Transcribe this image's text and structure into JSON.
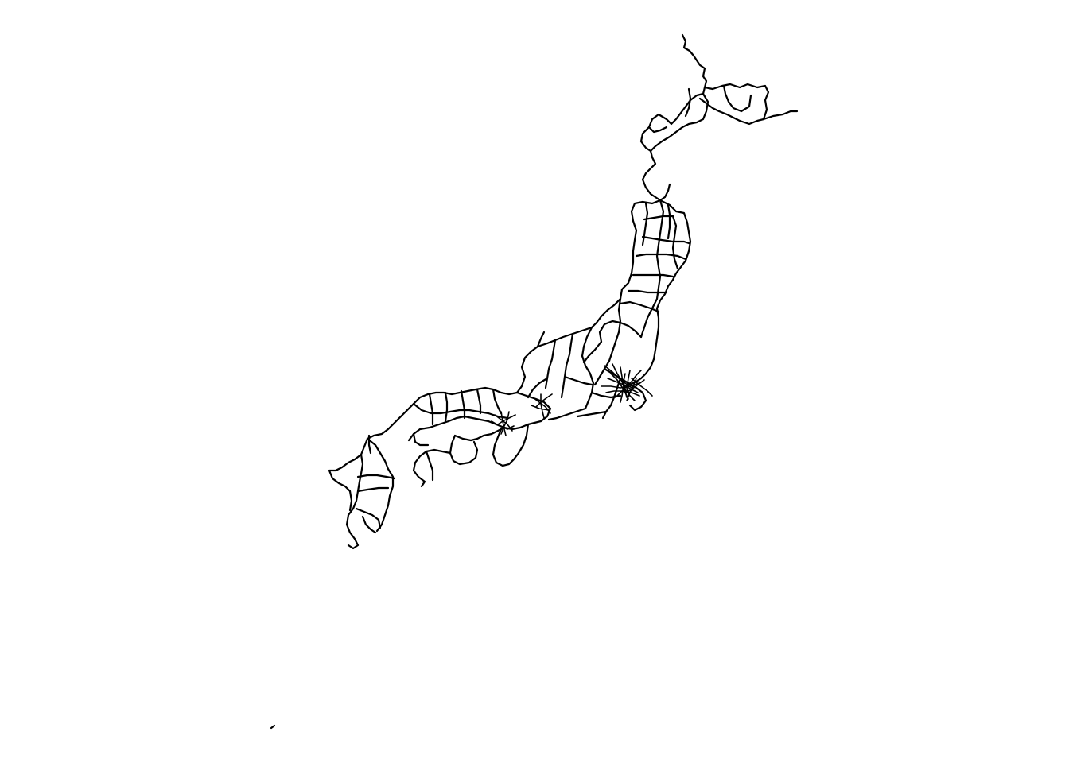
{
  "map": {
    "background": "#ffffff",
    "line_color": "#000000",
    "style": "network line plot, no axes, no labels"
  }
}
